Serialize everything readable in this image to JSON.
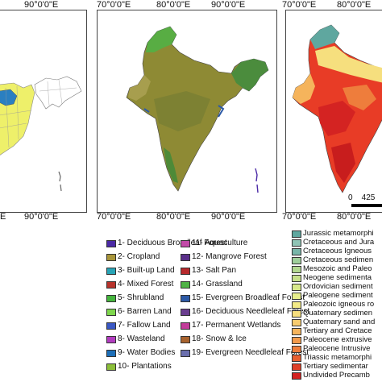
{
  "panel1": {
    "top_label": "90°0'0\"E",
    "bottom_labels": [
      "E",
      "90°0'0\"E"
    ]
  },
  "panel2": {
    "top_labels": [
      "70°0'0\"E",
      "80°0'0\"E",
      "90°0'0\"E"
    ],
    "bottom_labels": [
      "70°0'0\"E",
      "80°0'0\"E",
      "90°0'0\"E"
    ]
  },
  "panel3": {
    "top_labels": [
      "70°0'0\"E",
      "80°0'0\"E"
    ],
    "bottom_labels": [
      "70°0'0\"E",
      "80°0'0\"E"
    ],
    "scale_label": "0    425"
  },
  "landcover_legend": {
    "items": [
      {
        "label": "1- Deciduous Broadleaf Forest",
        "color": "#4b2aa6"
      },
      {
        "label": "2- Cropland",
        "color": "#a8953a"
      },
      {
        "label": "3- Built-up Land",
        "color": "#28a4b6"
      },
      {
        "label": "4- Mixed Forest",
        "color": "#b8332c"
      },
      {
        "label": "5- Shrubland",
        "color": "#45b53d"
      },
      {
        "label": "6- Barren Land",
        "color": "#7fd64d"
      },
      {
        "label": "7- Fallow Land",
        "color": "#3a58c4"
      },
      {
        "label": "8- Wasteland",
        "color": "#b23cc0"
      },
      {
        "label": "9- Water Bodies",
        "color": "#1d6fb8"
      },
      {
        "label": "10- Plantations",
        "color": "#8cbf3a"
      },
      {
        "label": "11- Aquaculture",
        "color": "#c24aa8"
      },
      {
        "label": "12- Mangrove Forest",
        "color": "#5a2f8a"
      },
      {
        "label": "13- Salt Pan",
        "color": "#b7292c"
      },
      {
        "label": "14- Grassland",
        "color": "#4fb346"
      },
      {
        "label": "15- Evergreen Broadleaf Forest",
        "color": "#2d5aa6"
      },
      {
        "label": "16- Deciduous Needleleaf Forest",
        "color": "#6a3d8f"
      },
      {
        "label": "17- Permanent Wetlands",
        "color": "#c33c9a"
      },
      {
        "label": "18- Snow & Ice",
        "color": "#a8632e"
      },
      {
        "label": "19- Evergreen Needleleaf Forest",
        "color": "#6b6fae"
      }
    ]
  },
  "geology_legend": {
    "items": [
      {
        "label": "Jurassic metamorphi",
        "color": "#5fa79f"
      },
      {
        "label": "Cretaceous and Jura",
        "color": "#8fc4b5"
      },
      {
        "label": "Cretaceous Igneous",
        "color": "#78b6a9"
      },
      {
        "label": "Cretaceous sedimen",
        "color": "#9fcf9b"
      },
      {
        "label": "Mesozoic and Paleo",
        "color": "#b2d890"
      },
      {
        "label": "Neogene sedimenta",
        "color": "#c6e08a"
      },
      {
        "label": "Ordovician sediment",
        "color": "#d8e98a"
      },
      {
        "label": "Paleogene sediment",
        "color": "#e6ee8c"
      },
      {
        "label": "Paleozoic igneous ro",
        "color": "#f2ea86"
      },
      {
        "label": "Quaternary sedimen",
        "color": "#f6df7e"
      },
      {
        "label": "Quaternary sand and",
        "color": "#f7cc6f"
      },
      {
        "label": "Tertiary and Cretace",
        "color": "#f5b45c"
      },
      {
        "label": "Paleocene extrusive",
        "color": "#f29a4b"
      },
      {
        "label": "Paleocene Intrusive",
        "color": "#ee7d3c"
      },
      {
        "label": "Triassic metamorphi",
        "color": "#e85f30"
      },
      {
        "label": "Tertiary sedimentar",
        "color": "#df4028"
      },
      {
        "label": "Undivided Precamb",
        "color": "#d42322"
      }
    ]
  }
}
